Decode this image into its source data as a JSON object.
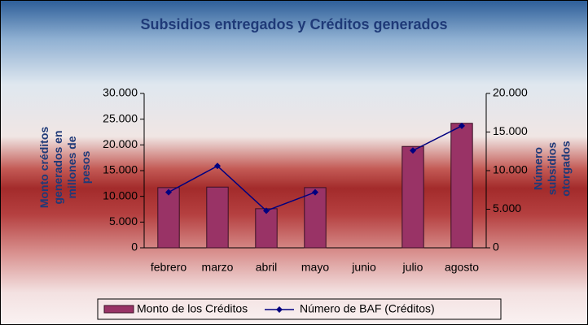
{
  "chart_data": {
    "type": "bar_line",
    "title": "Subsidios entregados y Créditos generados",
    "y_label": "Monto créditos generados en millones de pesos",
    "y2_label": "Número subsidios otorgados",
    "categories": [
      "febrero",
      "marzo",
      "abril",
      "mayo",
      "junio",
      "julio",
      "agosto"
    ],
    "series": [
      {
        "name": "Monto de los Créditos",
        "type": "bar",
        "color": "#993366",
        "values": [
          11700,
          11800,
          7600,
          11700,
          null,
          19700,
          24200
        ]
      },
      {
        "name": "Número de BAF (Créditos)",
        "type": "line",
        "axis": "y2",
        "color": "#000080",
        "values": [
          7200,
          10600,
          4800,
          7200,
          null,
          12600,
          15800
        ]
      }
    ],
    "ylim": [
      0,
      30000
    ],
    "yticks": [
      0,
      {
        "value": 5000,
        "label": "5.000"
      },
      {
        "value": 10000,
        "label": "10.000"
      },
      {
        "value": 15000,
        "label": "15.000"
      },
      {
        "value": 20000,
        "label": "20.000"
      },
      {
        "value": 25000,
        "label": "25.000"
      },
      {
        "value": 30000,
        "label": "30.000"
      }
    ],
    "y2lim": [
      0,
      20000
    ],
    "y2ticks": [
      0,
      {
        "value": 5000,
        "label": "5.000"
      },
      {
        "value": 10000,
        "label": "10.000"
      },
      {
        "value": 15000,
        "label": "15.000"
      },
      {
        "value": 20000,
        "label": "20.000"
      }
    ],
    "legend": "bottom"
  }
}
